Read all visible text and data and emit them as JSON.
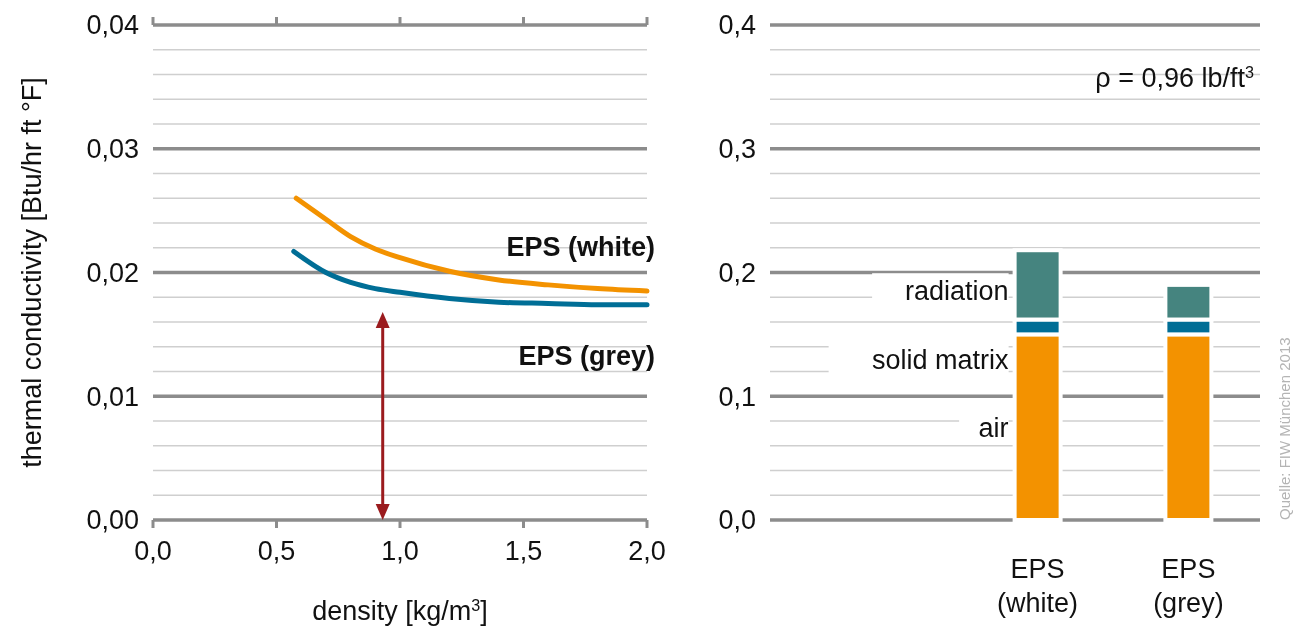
{
  "chart_data": [
    {
      "type": "line",
      "xlabel": "density [kg/m$^{3}$]",
      "ylabel": "thermal conductivity [Btu/hr ft °F]",
      "xlim": [
        0,
        2
      ],
      "xticks": [
        {
          "value": 0,
          "label": "0,0"
        },
        {
          "value": 0.5,
          "label": "0,5"
        },
        {
          "value": 1,
          "label": "1,0"
        },
        {
          "value": 1.5,
          "label": "1,5"
        },
        {
          "value": 2,
          "label": "2,0"
        }
      ],
      "ylim": [
        0,
        0.04
      ],
      "yticks": [
        {
          "value": 0,
          "label": "0,00"
        },
        {
          "value": 0.002,
          "label": null
        },
        {
          "value": 0.004,
          "label": null
        },
        {
          "value": 0.006,
          "label": null
        },
        {
          "value": 0.008,
          "label": null
        },
        {
          "value": 0.01,
          "label": "0,01"
        },
        {
          "value": 0.012,
          "label": null
        },
        {
          "value": 0.014,
          "label": null
        },
        {
          "value": 0.016,
          "label": null
        },
        {
          "value": 0.018,
          "label": null
        },
        {
          "value": 0.02,
          "label": "0,02"
        },
        {
          "value": 0.022,
          "label": null
        },
        {
          "value": 0.024,
          "label": null
        },
        {
          "value": 0.026,
          "label": null
        },
        {
          "value": 0.028,
          "label": null
        },
        {
          "value": 0.03,
          "label": "0,03"
        },
        {
          "value": 0.032,
          "label": null
        },
        {
          "value": 0.034,
          "label": null
        },
        {
          "value": 0.036,
          "label": null
        },
        {
          "value": 0.038,
          "label": null
        },
        {
          "value": 0.04,
          "label": "0,04"
        }
      ],
      "grid": "y",
      "legend": false,
      "series": [
        {
          "name": "EPS (white)",
          "color": "#f39200",
          "x": [
            0.58,
            0.7,
            0.8,
            0.9,
            1.0,
            1.2,
            1.4,
            1.6,
            1.8,
            2.0
          ],
          "values": [
            0.026,
            0.0243,
            0.0229,
            0.0219,
            0.0212,
            0.0201,
            0.0194,
            0.019,
            0.0187,
            0.0185
          ]
        },
        {
          "name": "EPS (grey)",
          "color": "#006e96",
          "x": [
            0.57,
            0.7,
            0.8,
            0.9,
            1.0,
            1.2,
            1.4,
            1.6,
            1.8,
            2.0
          ],
          "values": [
            0.0217,
            0.02,
            0.0192,
            0.0187,
            0.0184,
            0.0179,
            0.0176,
            0.0175,
            0.0174,
            0.0174
          ]
        }
      ]
    },
    {
      "type": "bar",
      "stacked": true,
      "categories": [
        "EPS (white)",
        "EPS (grey)"
      ],
      "ylim": [
        0,
        0.4
      ],
      "yticks": [
        {
          "value": 0,
          "label": "0,0"
        },
        {
          "value": 0.02,
          "label": null
        },
        {
          "value": 0.04,
          "label": null
        },
        {
          "value": 0.06,
          "label": null
        },
        {
          "value": 0.08,
          "label": null
        },
        {
          "value": 0.1,
          "label": "0,1"
        },
        {
          "value": 0.12,
          "label": null
        },
        {
          "value": 0.14,
          "label": null
        },
        {
          "value": 0.16,
          "label": null
        },
        {
          "value": 0.18,
          "label": null
        },
        {
          "value": 0.2,
          "label": "0,2"
        },
        {
          "value": 0.22,
          "label": null
        },
        {
          "value": 0.24,
          "label": null
        },
        {
          "value": 0.26,
          "label": null
        },
        {
          "value": 0.28,
          "label": null
        },
        {
          "value": 0.3,
          "label": "0,3"
        },
        {
          "value": 0.32,
          "label": null
        },
        {
          "value": 0.34,
          "label": null
        },
        {
          "value": 0.36,
          "label": null
        },
        {
          "value": 0.38,
          "label": null
        },
        {
          "value": 0.4,
          "label": "0,4"
        }
      ],
      "grid": "y",
      "legend": false,
      "annotations": [
        "ρ = 0,96 lb/ft$^{3}$",
        "Quelle: FIW München 2013"
      ],
      "series": [
        {
          "name": "air",
          "color": "#f39200",
          "values": [
            0.15,
            0.15
          ]
        },
        {
          "name": "solid matrix",
          "color": "#006e96",
          "values": [
            0.012,
            0.012
          ]
        },
        {
          "name": "radiation",
          "color": "#45847f",
          "values": [
            0.056,
            0.028
          ]
        }
      ]
    }
  ]
}
